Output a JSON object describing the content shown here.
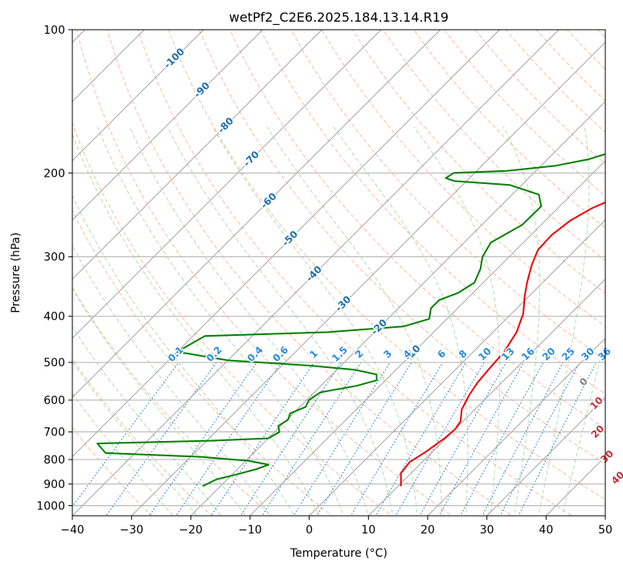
{
  "chart_data": {
    "type": "line",
    "title": "wetPf2_C2E6.2025.184.13.14.R19",
    "xlabel": "Temperature (°C)",
    "ylabel": "Pressure (hPa)",
    "xlim": [
      -40,
      50
    ],
    "ylim": [
      1050,
      100
    ],
    "y_scale": "log",
    "x_ticks": [
      -40,
      -30,
      -20,
      -10,
      0,
      10,
      20,
      30,
      40,
      50
    ],
    "x_tick_labels": [
      "−40",
      "−30",
      "−20",
      "−10",
      "0",
      "10",
      "20",
      "30",
      "40",
      "50"
    ],
    "y_ticks": [
      100,
      200,
      300,
      400,
      500,
      600,
      700,
      800,
      900,
      1000
    ],
    "y_tick_labels": [
      "100",
      "200",
      "300",
      "400",
      "500",
      "600",
      "700",
      "800",
      "900",
      "1000"
    ],
    "grid": true,
    "colors": {
      "temperature": "#ee0000",
      "dewpoint": "#008000",
      "isotherm": "#9a9a9a",
      "dry_adiabat": "#f4a582",
      "moist_adiabat": "#9fd39f",
      "mixing_ratio": "#1f77d4",
      "isotherm_label": "#1f6fae",
      "mixing_label": "#2a8ae0",
      "moist_label": "#c8303a",
      "moist_label_zero": "#7f7f7f"
    },
    "series": [
      {
        "key": "temperature",
        "points": [
          [
            10.5,
            910
          ],
          [
            8.3,
            855
          ],
          [
            7.9,
            810
          ],
          [
            8.9,
            770
          ],
          [
            9.8,
            720
          ],
          [
            10.0,
            690
          ],
          [
            9.6,
            665
          ],
          [
            7.8,
            628
          ],
          [
            6.6,
            585
          ],
          [
            5.9,
            550
          ],
          [
            5.6,
            520
          ],
          [
            5.2,
            475
          ],
          [
            4.0,
            432
          ],
          [
            2.0,
            395
          ],
          [
            -0.8,
            362
          ],
          [
            -2.6,
            340
          ],
          [
            -4.8,
            312
          ],
          [
            -6.3,
            290
          ],
          [
            -6.5,
            270
          ],
          [
            -5.8,
            252
          ],
          [
            -4.2,
            237
          ],
          [
            -1.8,
            225
          ],
          [
            0.9,
            215
          ],
          [
            3.2,
            205
          ],
          [
            3.8,
            198
          ],
          [
            3.1,
            190
          ],
          [
            3.0,
            180
          ],
          [
            4.4,
            170
          ],
          [
            6.5,
            160
          ],
          [
            10.3,
            148
          ],
          [
            14.5,
            138
          ],
          [
            17.6,
            130
          ],
          [
            18.5,
            122
          ],
          [
            19.1,
            112
          ],
          [
            20.0,
            105
          ],
          [
            21.0,
            100
          ]
        ]
      },
      {
        "key": "dewpoint",
        "points": [
          [
            -23.0,
            910
          ],
          [
            -21.8,
            880
          ],
          [
            -19.5,
            862
          ],
          [
            -16.8,
            838
          ],
          [
            -15.5,
            820
          ],
          [
            -19.5,
            805
          ],
          [
            -28.0,
            790
          ],
          [
            -45.0,
            775
          ],
          [
            -48.0,
            740
          ],
          [
            -29.0,
            730
          ],
          [
            -20.0,
            722
          ],
          [
            -19.2,
            700
          ],
          [
            -20.4,
            680
          ],
          [
            -19.8,
            660
          ],
          [
            -20.5,
            640
          ],
          [
            -19.0,
            620
          ],
          [
            -19.6,
            600
          ],
          [
            -19.0,
            578
          ],
          [
            -14.0,
            560
          ],
          [
            -11.5,
            545
          ],
          [
            -12.5,
            530
          ],
          [
            -17.0,
            518
          ],
          [
            -25.0,
            508
          ],
          [
            -40.0,
            495
          ],
          [
            -50.0,
            475
          ],
          [
            -48.0,
            440
          ],
          [
            -28.0,
            432
          ],
          [
            -16.0,
            420
          ],
          [
            -13.0,
            405
          ],
          [
            -14.5,
            385
          ],
          [
            -14.5,
            370
          ],
          [
            -12.5,
            357
          ],
          [
            -11.5,
            340
          ],
          [
            -12.8,
            318
          ],
          [
            -14.5,
            300
          ],
          [
            -15.5,
            280
          ],
          [
            -13.2,
            257
          ],
          [
            -13.1,
            235
          ],
          [
            -15.5,
            222
          ],
          [
            -22.0,
            212
          ],
          [
            -32.0,
            208
          ],
          [
            -34.0,
            205
          ],
          [
            -33.5,
            200
          ],
          [
            -25.0,
            198
          ],
          [
            -17.5,
            193
          ],
          [
            -13.0,
            187
          ],
          [
            -10.0,
            180
          ],
          [
            -8.5,
            172
          ],
          [
            -8.0,
            162
          ],
          [
            -7.6,
            155
          ],
          [
            -8.5,
            148
          ],
          [
            -12.0,
            142
          ],
          [
            -13.5,
            136
          ],
          [
            -13.0,
            130
          ],
          [
            -9.5,
            122
          ],
          [
            -7.0,
            112
          ],
          [
            -5.0,
            100
          ]
        ]
      }
    ],
    "isotherm_labels": [
      {
        "t": -100,
        "p": 115,
        "text": "-100"
      },
      {
        "t": -90,
        "p": 134,
        "text": "-90"
      },
      {
        "t": -80,
        "p": 159,
        "text": "-80"
      },
      {
        "t": -70,
        "p": 187,
        "text": "-70"
      },
      {
        "t": -60,
        "p": 229,
        "text": "-60"
      },
      {
        "t": -50,
        "p": 275,
        "text": "-50"
      },
      {
        "t": -40,
        "p": 326,
        "text": "-40"
      },
      {
        "t": -30,
        "p": 377,
        "text": "-30"
      },
      {
        "t": -20,
        "p": 422,
        "text": "-20"
      },
      {
        "t": -10,
        "p": 478,
        "text": "-10"
      }
    ],
    "mixing_ratio_labels": [
      "0.1",
      "0.2",
      "0.4",
      "0.6",
      "1",
      "1.5",
      "2",
      "3",
      "4",
      "6",
      "8",
      "10",
      "13",
      "16",
      "20",
      "25",
      "30",
      "36"
    ],
    "mixing_ratio_label_x": [
      -22.5,
      -16.0,
      -9.1,
      -4.8,
      0.8,
      5.2,
      8.5,
      13.3,
      16.6,
      22.4,
      26.0,
      29.7,
      33.6,
      37.0,
      40.5,
      43.8,
      47.1,
      49.9
    ],
    "moist_adiabat_labels": [
      {
        "text": "0",
        "t": 23.8,
        "p": 550
      },
      {
        "text": "10",
        "t": 29.6,
        "p": 610
      },
      {
        "text": "20",
        "t": 34.6,
        "p": 700
      },
      {
        "text": "30",
        "t": 40.4,
        "p": 790
      },
      {
        "text": "40",
        "t": 45.8,
        "p": 875
      }
    ]
  }
}
